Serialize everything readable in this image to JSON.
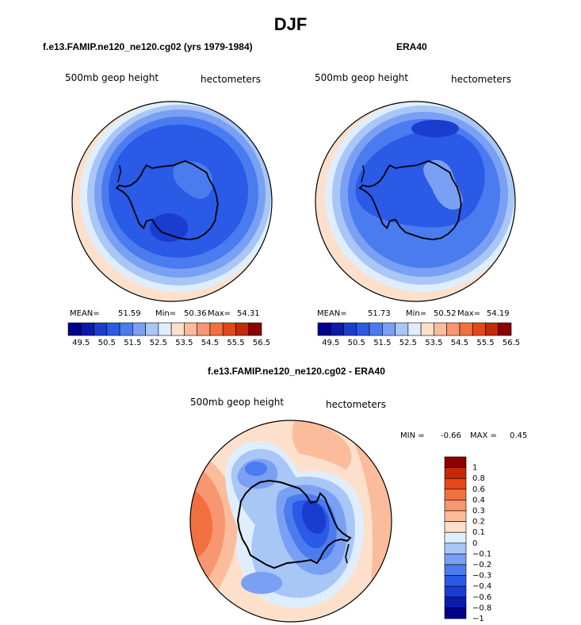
{
  "figure": {
    "title": "DJF"
  },
  "panels": [
    {
      "title": "f.e13.FAMIP.ne120_ne120.cg02 (yrs 1979-1984)",
      "field": "500mb geop height",
      "units": "hectometers",
      "stats": {
        "mean_label": "MEAN=",
        "mean": "51.59",
        "min_label": "Min=",
        "min": "50.36",
        "max_label": "Max=",
        "max": "54.31"
      }
    },
    {
      "title": "ERA40",
      "field": "500mb geop height",
      "units": "hectometers",
      "stats": {
        "mean_label": "MEAN=",
        "mean": "51.73",
        "min_label": "Min=",
        "min": "50.52",
        "max_label": "Max=",
        "max": "54.19"
      }
    },
    {
      "title": "f.e13.FAMIP.ne120_ne120.cg02 - ERA40",
      "field": "500mb geop height",
      "units": "hectometers",
      "stats": {
        "min_label": "MIN =",
        "min": "-0.66",
        "max_label": "MAX =",
        "max": "0.45"
      }
    }
  ],
  "colorbars": {
    "abs": {
      "colors": [
        "#00008a",
        "#0a1aad",
        "#1a3ccf",
        "#2a5ae6",
        "#4a7cf0",
        "#7aa0f4",
        "#a8c6f6",
        "#dfeefe",
        "#fde0cc",
        "#fbbc9c",
        "#f79670",
        "#f2703f",
        "#e54818",
        "#c42a0a",
        "#8a0000"
      ],
      "labels": [
        "49.5",
        "50.5",
        "51.5",
        "52.5",
        "53.5",
        "54.5",
        "55.5",
        "56.5"
      ]
    },
    "diff": {
      "colors": [
        "#8a0000",
        "#c42a0a",
        "#e54818",
        "#f2703f",
        "#f79670",
        "#fbbc9c",
        "#fde0cc",
        "#dfeefe",
        "#a8c6f6",
        "#7aa0f4",
        "#4a7cf0",
        "#2a5ae6",
        "#1a3ccf",
        "#0a1aad",
        "#00008a"
      ],
      "labels": [
        "1",
        "0.8",
        "0.6",
        "0.4",
        "0.3",
        "0.2",
        "0.1",
        "0",
        "−0.1",
        "−0.2",
        "−0.3",
        "−0.4",
        "−0.6",
        "−0.8",
        "−1"
      ]
    }
  }
}
